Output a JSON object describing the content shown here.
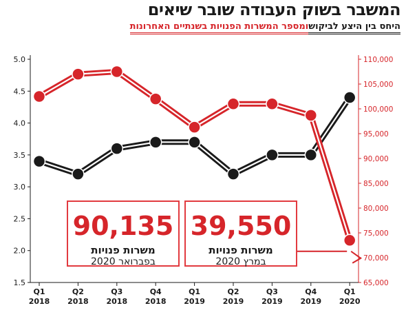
{
  "header": {
    "title": "המשבר בשוק העבודה שובר שיאים",
    "subtitle_black": "היחס בין היצע לביקוש",
    "subtitle_red": "ומספר המשרות הפנויות בשנתיים האחרונות"
  },
  "callouts": [
    {
      "value": "90,135",
      "line1": "משרות פנויות",
      "line2": "בפברואר 2020"
    },
    {
      "value": "39,550",
      "line1": "משרות פנויות",
      "line2": "במרץ 2020"
    }
  ],
  "colors": {
    "black_series": "#1a1a1a",
    "red_series": "#d6252a"
  },
  "chart_data": {
    "type": "line",
    "categories": [
      [
        "Q1",
        "2018"
      ],
      [
        "Q2",
        "2018"
      ],
      [
        "Q3",
        "2018"
      ],
      [
        "Q4",
        "2018"
      ],
      [
        "Q1",
        "2019"
      ],
      [
        "Q2",
        "2019"
      ],
      [
        "Q3",
        "2019"
      ],
      [
        "Q4",
        "2019"
      ],
      [
        "Q1",
        "2020"
      ]
    ],
    "left_axis": {
      "ylim": [
        1.5,
        5.0
      ],
      "ticks": [
        "1.5",
        "2.0",
        "2.5",
        "3.0",
        "3.5",
        "4.0",
        "4.5",
        "5.0"
      ]
    },
    "right_axis": {
      "ylim": [
        65000,
        110000
      ],
      "ticks": [
        "65,000",
        "70,000",
        "75,000",
        "80,000",
        "85,000",
        "90,000",
        "95,000",
        "100,000",
        "105,000",
        "110,000"
      ]
    },
    "series": [
      {
        "axis": "left",
        "color": "#1a1a1a",
        "values": [
          3.4,
          3.2,
          3.6,
          3.7,
          3.7,
          3.2,
          3.5,
          3.5,
          4.4
        ]
      },
      {
        "axis": "right",
        "color": "#d6252a",
        "values": [
          102500,
          107000,
          107500,
          102000,
          96300,
          101000,
          101000,
          98700,
          73500
        ]
      }
    ]
  }
}
